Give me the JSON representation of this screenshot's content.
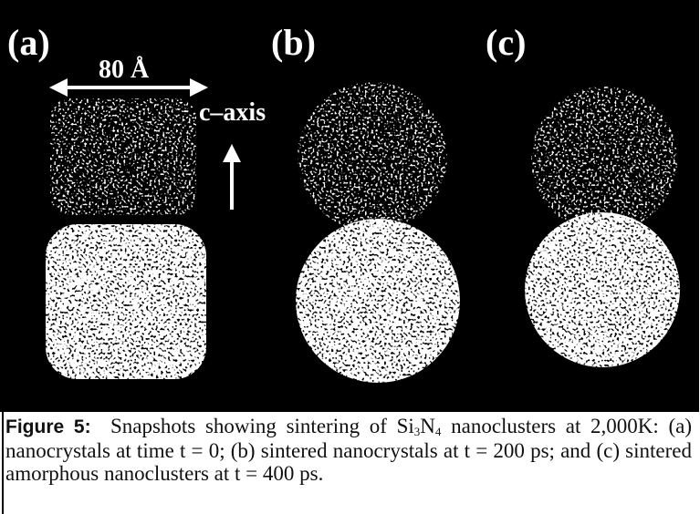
{
  "figure": {
    "panels": [
      {
        "label": "(a)"
      },
      {
        "label": "(b)"
      },
      {
        "label": "(c)"
      }
    ],
    "scale_label": "80 Å",
    "axis_label": "c–axis",
    "caption": {
      "label": "Figure 5:",
      "text_before": "Snapshots showing sintering of Si",
      "sub_1": "3",
      "text_middle": "N",
      "sub_2": "4",
      "text_after": " nanoclusters at 2,000K: (a) nanocrystals at time t = 0; (b) sintered nanocrystals at t = 200 ps; and (c) sintered amorphous nanoclusters at t = 400 ps."
    }
  }
}
